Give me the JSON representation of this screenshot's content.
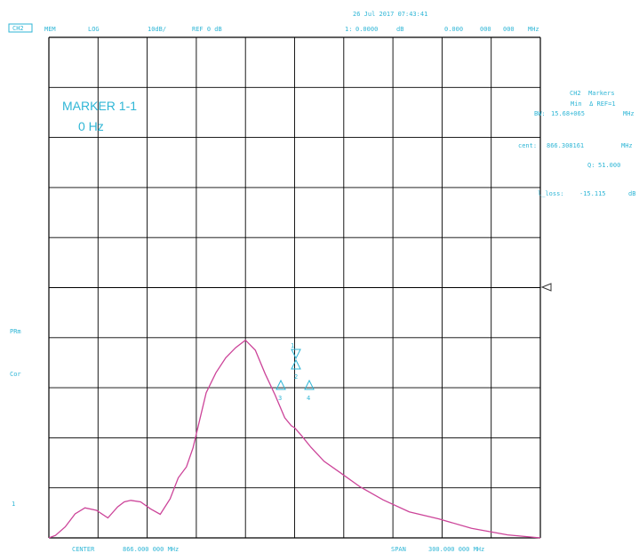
{
  "header": {
    "date_time": "26 Jul 2017 07:43:41",
    "channel": "CH2",
    "format": "MEM",
    "scale_type": "LOG",
    "scale": "10dB/",
    "reference": "REF 0 dB",
    "marker_readout_label": "1:",
    "marker_readout_value": "0.0000",
    "marker_readout_unit": "dB",
    "marker_freq_value": "0.000",
    "marker_freq_mid": "000",
    "marker_freq_end": "000",
    "marker_freq_unit": "MHz"
  },
  "marker_box": {
    "title": "MARKER 1-1",
    "value": "0 Hz"
  },
  "right_panel": {
    "line1": "CH2  Markers",
    "line2": "Min  Δ REF=1",
    "bw_label": "BW:",
    "bw_value": "15.68+065",
    "bw_unit": "MHz",
    "cent_label": "cent:",
    "cent_value": "866.308161",
    "cent_unit": "MHz",
    "q_label": "Q:",
    "q_value": "51.000",
    "loss_label": "l_loss:",
    "loss_value": "-15.115",
    "loss_unit": "dB"
  },
  "left_labels": {
    "prm": "PRm",
    "cor": "Cor",
    "marker": "1"
  },
  "footer": {
    "center_label": "CENTER",
    "center_value": "866.000 000 MHz",
    "span_label": "SPAN",
    "span_value": "300.000 000 MHz"
  },
  "markers": {
    "m1": "1",
    "m2": "2",
    "m3": "3",
    "m4": "4"
  },
  "colors": {
    "grid": "#000000",
    "annotation": "#2fb6d6",
    "trace": "#cc4499"
  },
  "chart_data": {
    "type": "line",
    "x_axis": {
      "center_mhz": 866,
      "span_mhz": 300,
      "divisions": 10
    },
    "y_axis": {
      "scale_db_per_div": 10,
      "reference_db": 0,
      "divisions": 10
    },
    "trace": {
      "x_mhz": [
        716,
        720,
        726,
        732,
        738,
        745,
        752,
        758,
        762,
        766,
        772,
        778,
        784,
        790,
        795,
        800,
        804,
        808,
        812,
        818,
        824,
        830,
        836,
        842,
        848,
        854,
        860,
        864,
        866,
        870,
        876,
        884,
        894,
        906,
        920,
        936,
        954,
        974,
        996,
        1016
      ],
      "div_from_bottom": [
        0.0,
        0.05,
        0.22,
        0.48,
        0.6,
        0.55,
        0.4,
        0.62,
        0.72,
        0.75,
        0.72,
        0.58,
        0.47,
        0.78,
        1.2,
        1.42,
        1.8,
        2.35,
        2.9,
        3.3,
        3.6,
        3.8,
        3.95,
        3.75,
        3.28,
        2.86,
        2.4,
        2.24,
        2.2,
        2.05,
        1.81,
        1.53,
        1.3,
        1.02,
        0.76,
        0.52,
        0.38,
        0.19,
        0.06,
        0.0
      ]
    }
  }
}
